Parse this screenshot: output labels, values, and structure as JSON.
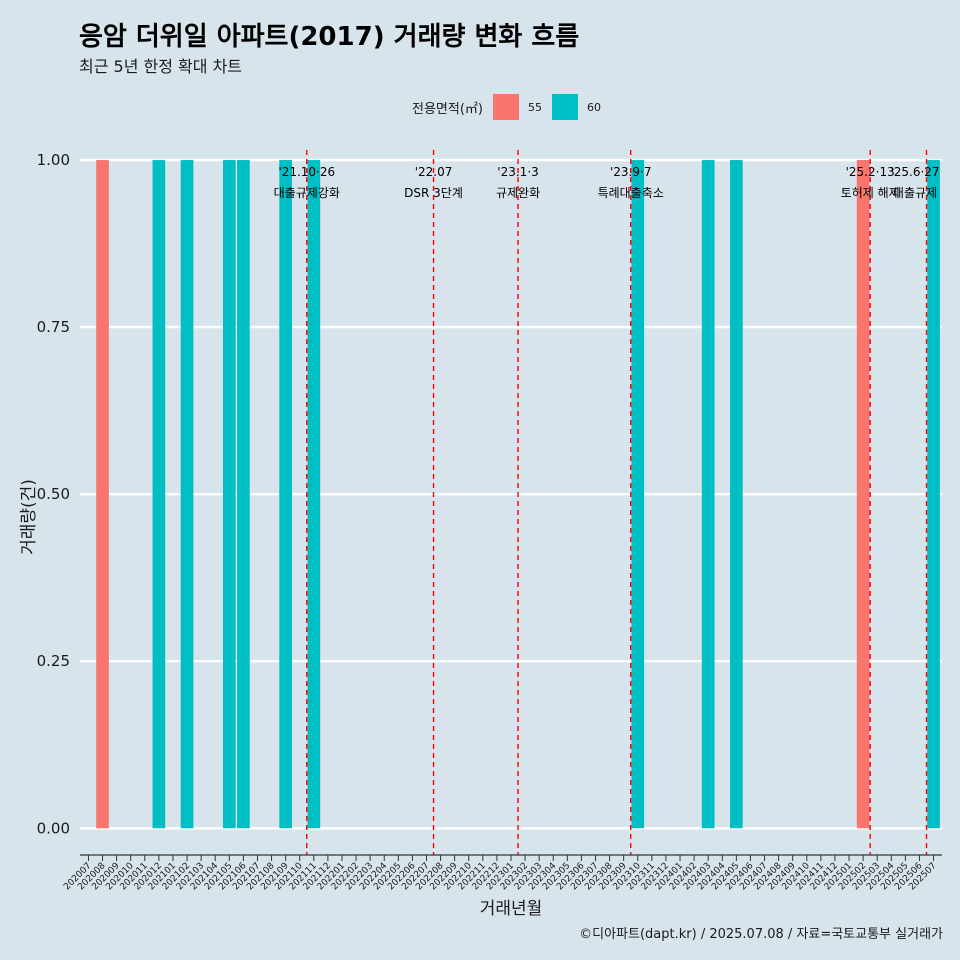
{
  "chart_data": {
    "type": "bar",
    "title": "응암 더위일 아파트(2017) 거래량 변화 흐름",
    "subtitle": "최근 5년 한정 확대 차트",
    "xlabel": "거래년월",
    "ylabel": "거래량(건)",
    "ylim": [
      -0.04,
      1.03
    ],
    "yticks": [
      0.0,
      0.25,
      0.5,
      0.75,
      1.0
    ],
    "ytick_labels": [
      "0.00",
      "0.25",
      "0.50",
      "0.75",
      "1.00"
    ],
    "legend": {
      "title": "전용면적(㎡)",
      "position": "top",
      "entries": [
        {
          "name": "55",
          "color": "#F8766D"
        },
        {
          "name": "60",
          "color": "#00BFC4"
        }
      ]
    },
    "categories": [
      "202007",
      "202008",
      "202009",
      "202010",
      "202011",
      "202012",
      "202101",
      "202102",
      "202103",
      "202104",
      "202105",
      "202106",
      "202107",
      "202108",
      "202109",
      "202110",
      "202111",
      "202112",
      "202201",
      "202202",
      "202203",
      "202204",
      "202205",
      "202206",
      "202207",
      "202208",
      "202209",
      "202210",
      "202211",
      "202212",
      "202301",
      "202302",
      "202303",
      "202304",
      "202305",
      "202306",
      "202307",
      "202308",
      "202309",
      "202310",
      "202311",
      "202312",
      "202401",
      "202402",
      "202403",
      "202404",
      "202405",
      "202406",
      "202407",
      "202408",
      "202409",
      "202410",
      "202411",
      "202412",
      "202501",
      "202502",
      "202503",
      "202504",
      "202505",
      "202506",
      "202507"
    ],
    "series": [
      {
        "name": "55",
        "color": "#F8766D",
        "points": [
          {
            "x": "202008",
            "y": 1
          },
          {
            "x": "202502",
            "y": 1
          }
        ]
      },
      {
        "name": "60",
        "color": "#00BFC4",
        "points": [
          {
            "x": "202012",
            "y": 1
          },
          {
            "x": "202102",
            "y": 1
          },
          {
            "x": "202105",
            "y": 1
          },
          {
            "x": "202106",
            "y": 1
          },
          {
            "x": "202109",
            "y": 1
          },
          {
            "x": "202111",
            "y": 1
          },
          {
            "x": "202310",
            "y": 1
          },
          {
            "x": "202403",
            "y": 1
          },
          {
            "x": "202405",
            "y": 1
          },
          {
            "x": "202507",
            "y": 1
          }
        ]
      }
    ],
    "annotations": [
      {
        "x": 15.5,
        "date": "'21.10·26",
        "label": "대출규제강화"
      },
      {
        "x": 24.5,
        "date": "'22.07",
        "label": "DSR 3단계"
      },
      {
        "x": 30.5,
        "date": "'23.1·3",
        "label": "규제완화"
      },
      {
        "x": 38.5,
        "date": "'23.9·7",
        "label": "특례대출축소"
      },
      {
        "x": 55.5,
        "date": "'25.2·13",
        "label": "토허제 해제"
      },
      {
        "x": 59.5,
        "date": "'25.6·27",
        "label": "대출규제"
      }
    ],
    "reference_line_color": "#FF0000"
  },
  "caption": "©디아파트(dapt.kr) / 2025.07.08 / 자료=국토교통부 실거래가"
}
